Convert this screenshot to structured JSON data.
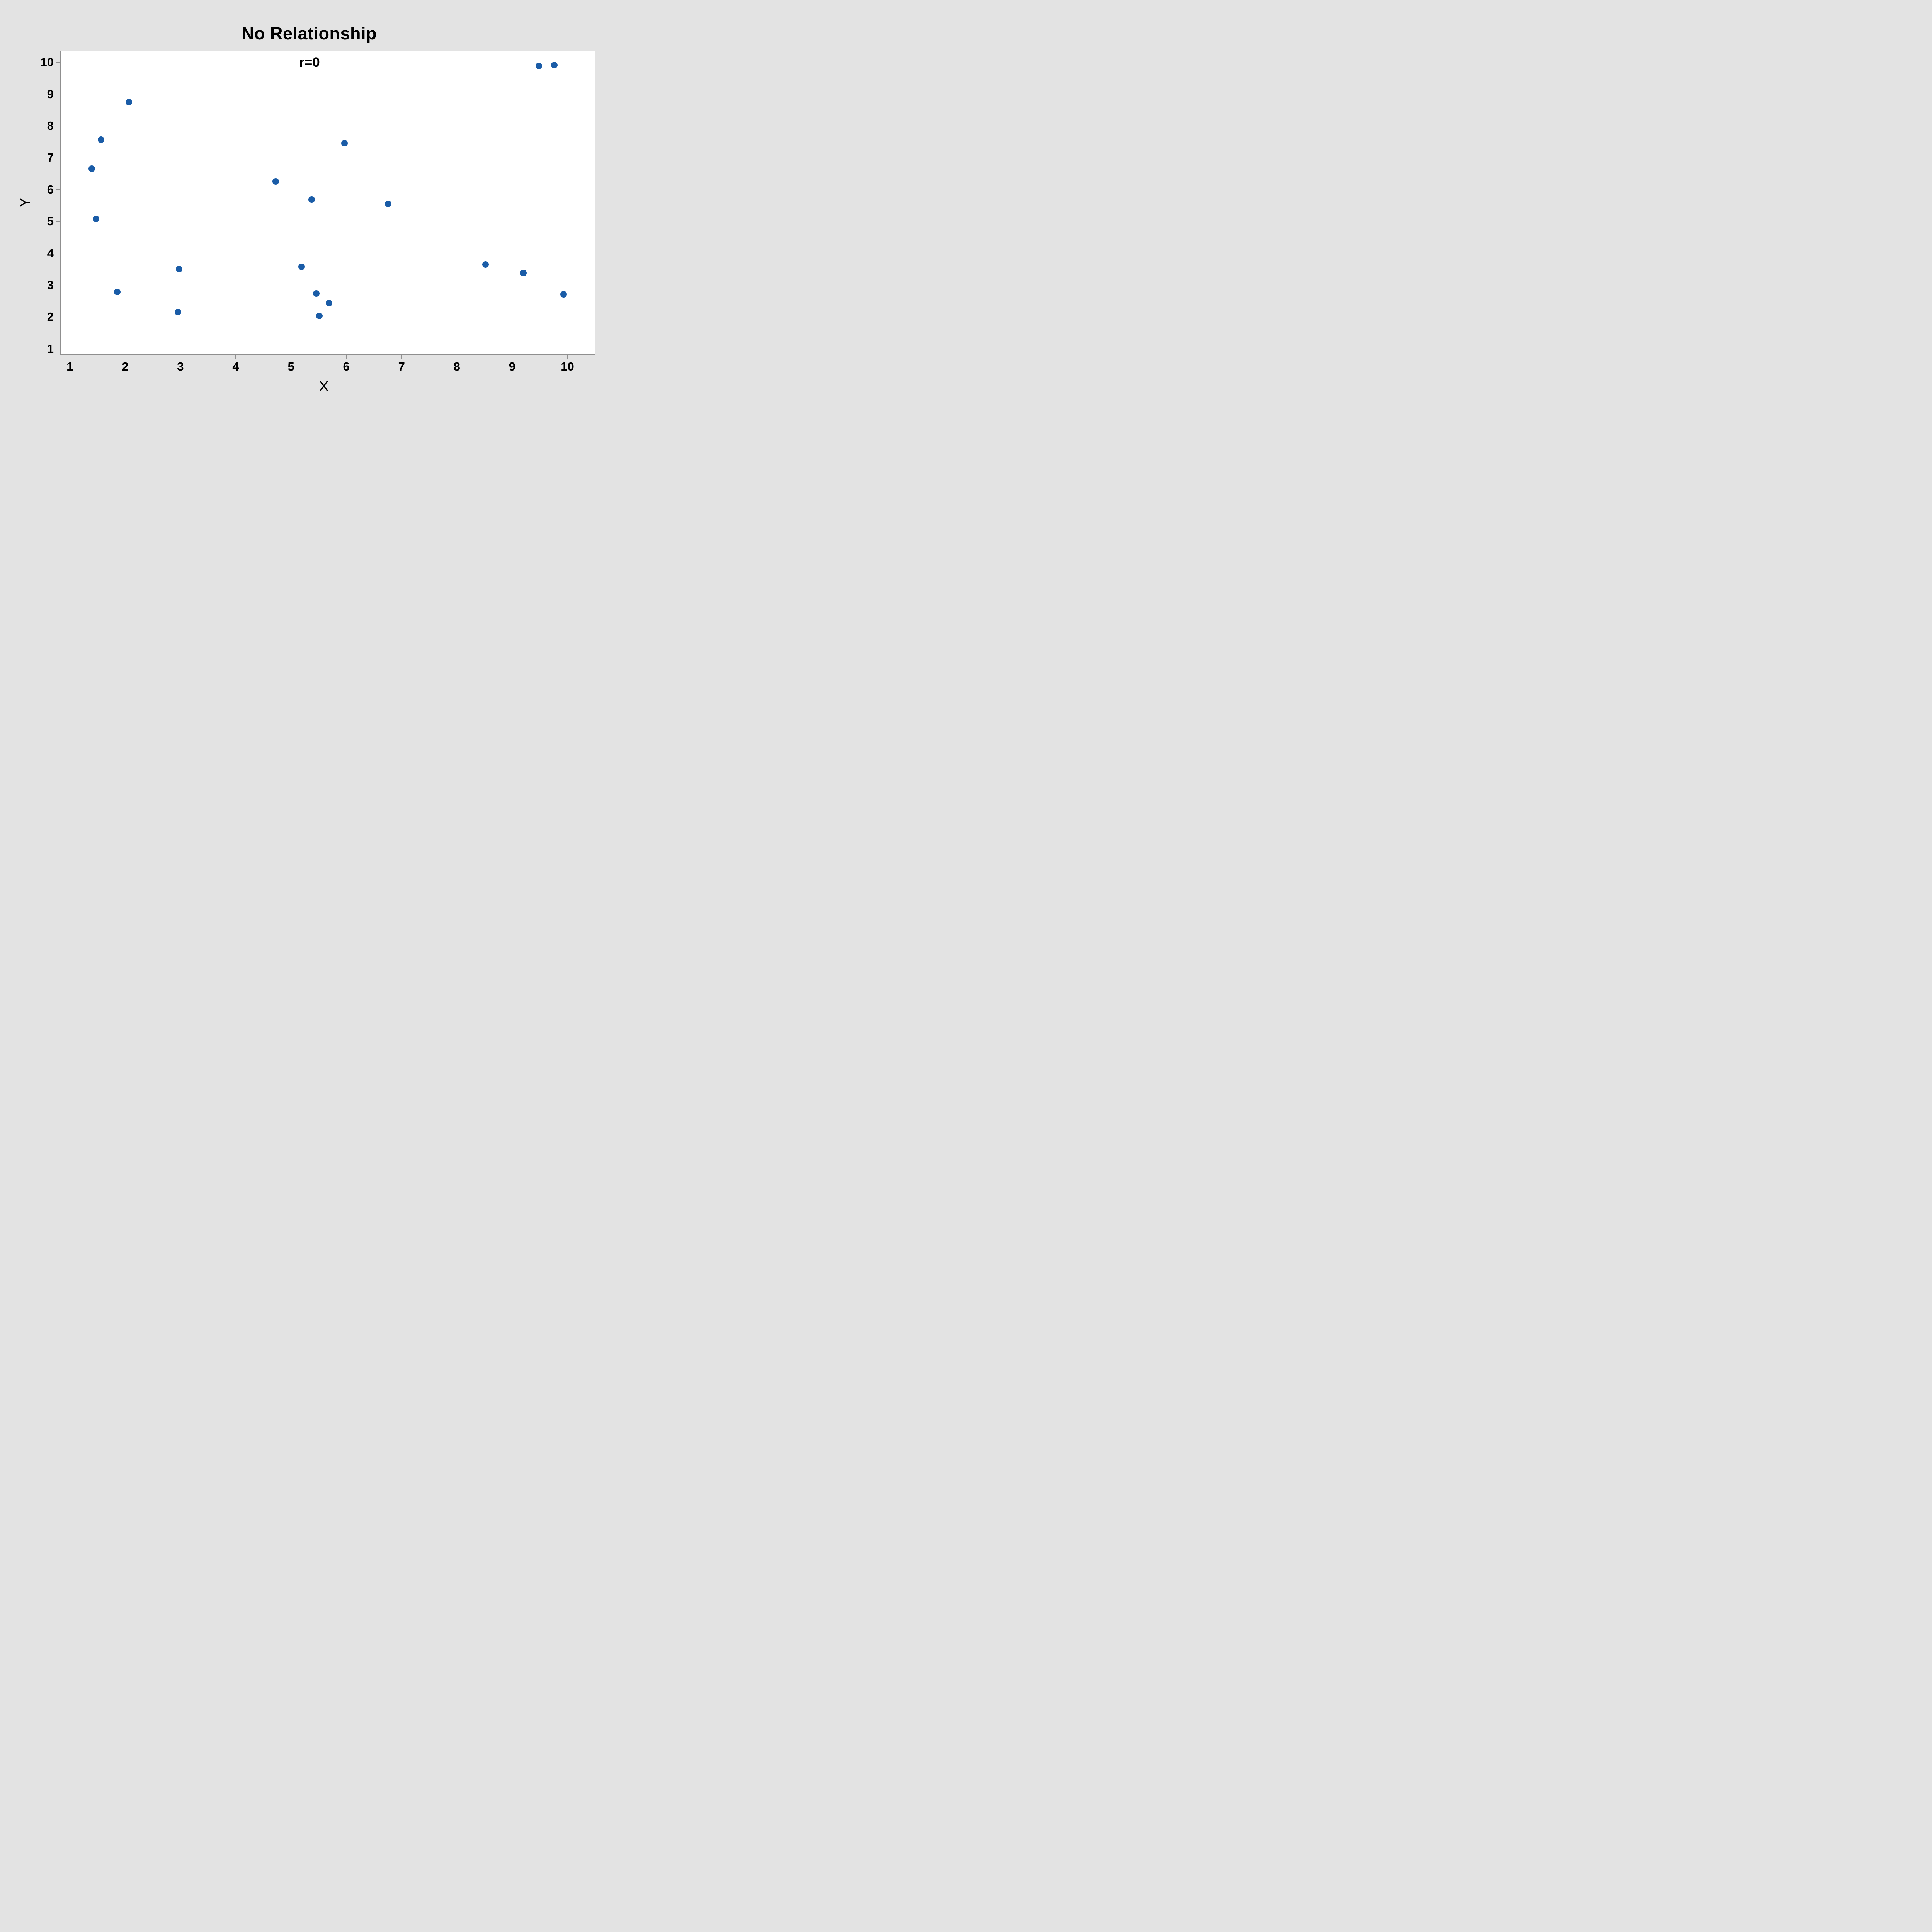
{
  "title": "No Relationship",
  "annotation": "r=0",
  "colors": {
    "background": "#e3e3e3",
    "plot_background": "#ffffff",
    "axis_line": "#8f8f8f",
    "text": "#000000",
    "marker": "#1a5ca7"
  },
  "chart_data": {
    "type": "scatter",
    "title": "No Relationship",
    "annotation": "r=0",
    "xlabel": "X",
    "ylabel": "Y",
    "xlim": [
      1,
      10
    ],
    "ylim": [
      1,
      10
    ],
    "x_ticks": [
      1,
      2,
      3,
      4,
      5,
      6,
      7,
      8,
      9,
      10
    ],
    "y_ticks": [
      1,
      2,
      3,
      4,
      5,
      6,
      7,
      8,
      9,
      10
    ],
    "grid": false,
    "legend_position": "none",
    "marker_color": "#1a5ca7",
    "points": [
      [
        2.06,
        8.76
      ],
      [
        1.56,
        7.57
      ],
      [
        1.39,
        6.66
      ],
      [
        1.47,
        5.08
      ],
      [
        1.85,
        2.78
      ],
      [
        2.97,
        3.5
      ],
      [
        2.95,
        2.14
      ],
      [
        4.72,
        6.26
      ],
      [
        5.19,
        3.57
      ],
      [
        5.37,
        5.69
      ],
      [
        5.46,
        2.73
      ],
      [
        5.51,
        2.03
      ],
      [
        5.69,
        2.43
      ],
      [
        5.97,
        7.47
      ],
      [
        6.76,
        5.56
      ],
      [
        8.52,
        3.64
      ],
      [
        9.21,
        3.37
      ],
      [
        9.49,
        9.9
      ],
      [
        9.77,
        9.93
      ],
      [
        9.94,
        2.7
      ]
    ]
  }
}
